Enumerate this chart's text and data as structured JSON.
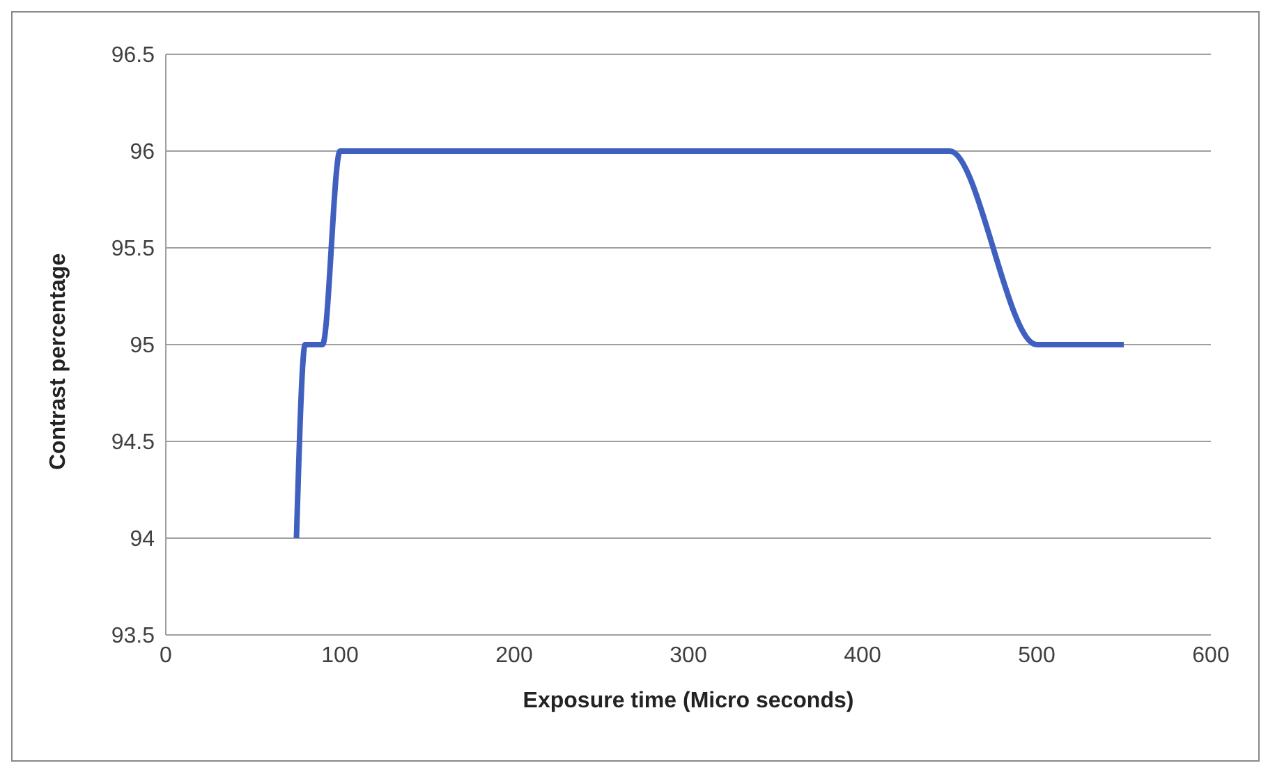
{
  "chart_data": {
    "type": "line",
    "xlabel": "Exposure time (Micro seconds)",
    "ylabel": "Contrast percentage",
    "x": [
      75,
      80,
      90,
      100,
      125,
      400,
      450,
      500,
      550
    ],
    "series": [
      {
        "color": "#4060c0",
        "values": [
          94,
          95,
          95,
          96,
          96,
          96,
          96,
          95,
          95
        ]
      }
    ],
    "xlim": [
      0,
      600
    ],
    "xticks": [
      0,
      100,
      200,
      300,
      400,
      500,
      600
    ],
    "ylim": [
      93.5,
      96.5
    ],
    "yticks": [
      93.5,
      94,
      94.5,
      95,
      95.5,
      96,
      96.5
    ],
    "grid": "y",
    "legend": false,
    "marker": "none",
    "line_style": "solid"
  }
}
